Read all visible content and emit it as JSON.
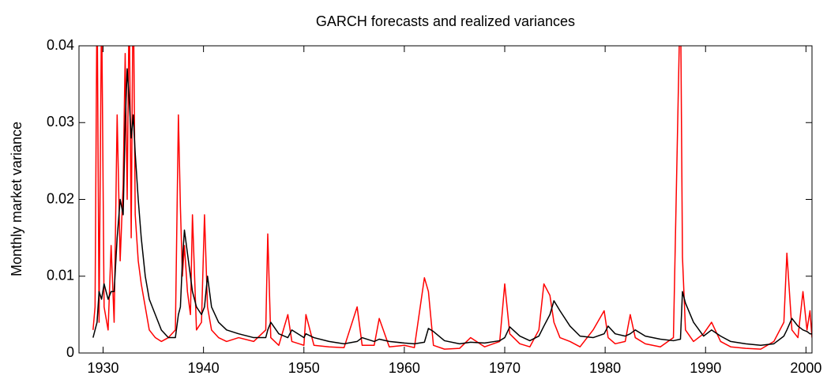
{
  "chart_data": {
    "type": "line",
    "title": "GARCH forecasts and realized variances",
    "ylabel": "Monthly market variance",
    "x": [
      1929.0,
      1929.2,
      1929.4,
      1929.6,
      1929.85,
      1930.1,
      1930.5,
      1930.8,
      1931.1,
      1931.4,
      1931.7,
      1932.0,
      1932.2,
      1932.4,
      1932.6,
      1932.8,
      1933.0,
      1933.2,
      1933.5,
      1933.8,
      1934.2,
      1934.6,
      1935.2,
      1935.8,
      1936.5,
      1937.2,
      1937.5,
      1937.7,
      1937.9,
      1938.1,
      1938.4,
      1938.7,
      1938.9,
      1939.3,
      1939.8,
      1940.1,
      1940.4,
      1940.8,
      1941.5,
      1942.3,
      1943.5,
      1945.0,
      1946.2,
      1946.4,
      1946.7,
      1947.5,
      1948.4,
      1948.8,
      1950.0,
      1950.2,
      1951.0,
      1952.5,
      1954.0,
      1955.3,
      1955.8,
      1957.0,
      1957.5,
      1958.5,
      1960.0,
      1961.0,
      1962.0,
      1962.4,
      1962.9,
      1964.0,
      1965.5,
      1966.6,
      1968.0,
      1969.5,
      1970.0,
      1970.5,
      1971.5,
      1972.5,
      1973.4,
      1973.9,
      1974.5,
      1974.9,
      1975.5,
      1976.5,
      1977.5,
      1978.8,
      1979.9,
      1980.3,
      1981.0,
      1982.0,
      1982.5,
      1983.0,
      1984.0,
      1985.5,
      1986.8,
      1987.5,
      1987.7,
      1988.0,
      1988.8,
      1989.8,
      1990.6,
      1991.5,
      1992.5,
      1994.0,
      1995.5,
      1996.8,
      1997.8,
      1998.1,
      1998.6,
      1999.2,
      1999.7,
      2000.1,
      2000.4,
      2000.6
    ],
    "series": [
      {
        "color": "#ff0000",
        "values": [
          0.003,
          0.006,
          0.048,
          0.004,
          0.046,
          0.006,
          0.003,
          0.014,
          0.004,
          0.031,
          0.012,
          0.022,
          0.039,
          0.02,
          0.047,
          0.015,
          0.05,
          0.018,
          0.012,
          0.009,
          0.006,
          0.003,
          0.002,
          0.0015,
          0.002,
          0.003,
          0.031,
          0.019,
          0.01,
          0.014,
          0.008,
          0.005,
          0.018,
          0.003,
          0.004,
          0.018,
          0.006,
          0.003,
          0.002,
          0.0015,
          0.002,
          0.0015,
          0.003,
          0.0155,
          0.002,
          0.001,
          0.005,
          0.0015,
          0.001,
          0.005,
          0.001,
          0.0008,
          0.0007,
          0.006,
          0.001,
          0.001,
          0.0045,
          0.0008,
          0.001,
          0.0007,
          0.0098,
          0.008,
          0.001,
          0.0005,
          0.0006,
          0.002,
          0.0008,
          0.0015,
          0.009,
          0.0025,
          0.0012,
          0.0008,
          0.003,
          0.009,
          0.0075,
          0.004,
          0.002,
          0.0015,
          0.0008,
          0.003,
          0.0055,
          0.002,
          0.0012,
          0.0015,
          0.005,
          0.002,
          0.0012,
          0.0008,
          0.002,
          0.048,
          0.0125,
          0.003,
          0.0015,
          0.0025,
          0.004,
          0.0015,
          0.0008,
          0.0006,
          0.0005,
          0.0015,
          0.004,
          0.013,
          0.003,
          0.002,
          0.008,
          0.003,
          0.0055,
          0.002
        ]
      },
      {
        "color": "#000000",
        "values": [
          0.002,
          0.003,
          0.004,
          0.008,
          0.007,
          0.009,
          0.007,
          0.008,
          0.008,
          0.015,
          0.02,
          0.018,
          0.03,
          0.037,
          0.033,
          0.028,
          0.031,
          0.026,
          0.02,
          0.015,
          0.01,
          0.007,
          0.005,
          0.003,
          0.002,
          0.002,
          0.005,
          0.006,
          0.012,
          0.016,
          0.013,
          0.01,
          0.008,
          0.006,
          0.005,
          0.006,
          0.01,
          0.006,
          0.004,
          0.003,
          0.0025,
          0.002,
          0.002,
          0.003,
          0.004,
          0.0025,
          0.002,
          0.003,
          0.002,
          0.0025,
          0.002,
          0.0015,
          0.0012,
          0.0015,
          0.002,
          0.0015,
          0.0018,
          0.0015,
          0.0013,
          0.0012,
          0.0014,
          0.0032,
          0.0028,
          0.0016,
          0.0012,
          0.0014,
          0.0013,
          0.0016,
          0.002,
          0.0034,
          0.0022,
          0.0016,
          0.0022,
          0.0035,
          0.005,
          0.0068,
          0.0055,
          0.0035,
          0.0022,
          0.002,
          0.0025,
          0.0035,
          0.0025,
          0.0022,
          0.0025,
          0.003,
          0.0022,
          0.0018,
          0.0016,
          0.0018,
          0.008,
          0.0065,
          0.004,
          0.0022,
          0.003,
          0.0022,
          0.0015,
          0.0012,
          0.001,
          0.0012,
          0.0022,
          0.003,
          0.0045,
          0.0035,
          0.003,
          0.0028,
          0.0025,
          0.0025
        ]
      }
    ],
    "xlim": [
      1927.6,
      2000.6
    ],
    "ylim": [
      0,
      0.04
    ],
    "xticks": [
      1930,
      1940,
      1950,
      1960,
      1970,
      1980,
      1990,
      2000
    ],
    "yticks": [
      0,
      0.01,
      0.02,
      0.03,
      0.04
    ]
  }
}
